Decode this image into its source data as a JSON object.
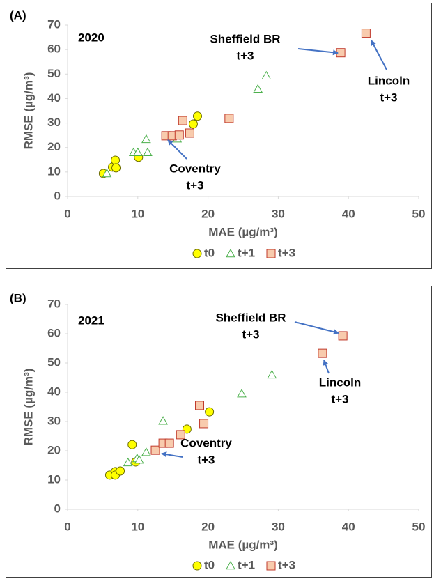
{
  "chart_data": [
    {
      "type": "scatter",
      "panel_label": "(A)",
      "year_label": "2020",
      "x_label": "MAE (µg/m³)",
      "y_label": "RMSE (µg/m³)",
      "xlim": [
        0,
        50
      ],
      "xticks": [
        0,
        10,
        20,
        30,
        40,
        50
      ],
      "ylim": [
        0,
        70
      ],
      "yticks": [
        0,
        10,
        20,
        30,
        40,
        50,
        60,
        70
      ],
      "grid": false,
      "legend": "bottom",
      "series": [
        {
          "name": "t0",
          "marker": "circle",
          "color": "#ffff00",
          "x": [
            5.1,
            6.4,
            6.8,
            6.9,
            10.1,
            17.9,
            18.5
          ],
          "values": [
            9.4,
            12,
            14.8,
            11.7,
            16,
            29.6,
            32.8
          ]
        },
        {
          "name": "t+1",
          "marker": "triangle",
          "color": "#4cb04c",
          "x": [
            5.6,
            9.4,
            10,
            11.2,
            11.4,
            15.6,
            27.1,
            28.3
          ],
          "values": [
            9.4,
            18,
            18,
            23.4,
            18,
            23.6,
            43.9,
            49.3
          ]
        },
        {
          "name": "t+3",
          "marker": "square",
          "color": "#c0392b",
          "x": [
            14,
            14.9,
            15.9,
            16.4,
            17.4,
            23,
            38.9,
            42.5
          ],
          "values": [
            24.8,
            24.8,
            25.1,
            31,
            25.9,
            31.9,
            58.7,
            66.7
          ]
        }
      ],
      "annotations": [
        {
          "lines": [
            "Sheffield BR",
            "t+3"
          ]
        },
        {
          "lines": [
            "Lincoln",
            "t+3"
          ]
        },
        {
          "lines": [
            "Coventry",
            "t+3"
          ]
        }
      ]
    },
    {
      "type": "scatter",
      "panel_label": "(B)",
      "year_label": "2021",
      "x_label": "MAE (µg/m³)",
      "y_label": "RMSE (µg/m³)",
      "xlim": [
        0,
        50
      ],
      "xticks": [
        0,
        10,
        20,
        30,
        40,
        50
      ],
      "ylim": [
        0,
        70
      ],
      "yticks": [
        0,
        10,
        20,
        30,
        40,
        50,
        60,
        70
      ],
      "grid": false,
      "legend": "bottom",
      "series": [
        {
          "name": "t0",
          "marker": "circle",
          "color": "#ffff00",
          "x": [
            6,
            6.8,
            6.8,
            7.5,
            9.2,
            9.7,
            17,
            20.2
          ],
          "values": [
            11.7,
            12.9,
            11.7,
            13.1,
            22.1,
            16.2,
            27.4,
            33.3
          ]
        },
        {
          "name": "t+1",
          "marker": "triangle",
          "color": "#4cb04c",
          "x": [
            8.6,
            9.9,
            10.2,
            11.2,
            13.6,
            24.8,
            29.1
          ],
          "values": [
            16,
            17.4,
            16.9,
            19.5,
            30.2,
            39.5,
            46
          ]
        },
        {
          "name": "t+3",
          "marker": "square",
          "color": "#c0392b",
          "x": [
            12.5,
            13.6,
            14.5,
            16.1,
            18.8,
            19.4,
            36.3,
            39.2
          ],
          "values": [
            20.2,
            22.6,
            22.6,
            25.5,
            35.5,
            29.3,
            53.3,
            59.3
          ]
        }
      ],
      "annotations": [
        {
          "lines": [
            "Sheffield BR",
            "t+3"
          ]
        },
        {
          "lines": [
            "Lincoln",
            "t+3"
          ]
        },
        {
          "lines": [
            "Coventry",
            "t+3"
          ]
        }
      ]
    }
  ]
}
